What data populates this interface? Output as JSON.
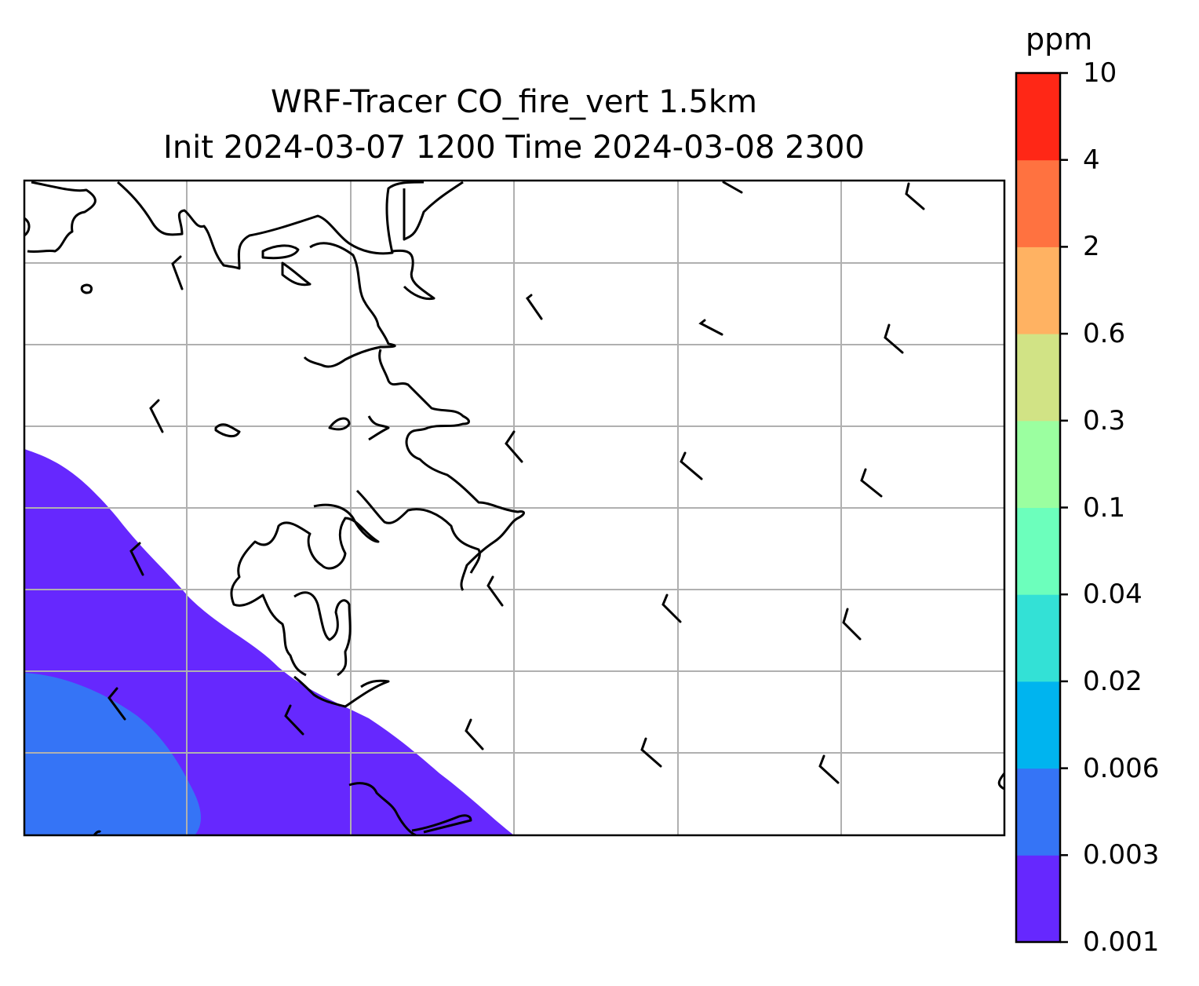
{
  "title": {
    "line1": "WRF-Tracer CO_fire_vert 1.5km",
    "line2": "Init 2024-03-07 1200 Time 2024-03-08 2300"
  },
  "colorbar": {
    "unit": "ppm",
    "levels": [
      "0.001",
      "0.003",
      "0.006",
      "0.02",
      "0.04",
      "0.1",
      "0.3",
      "0.6",
      "2",
      "4",
      "10"
    ],
    "colors": [
      "#6628fe",
      "#3574f6",
      "#00b4ef",
      "#33e1d6",
      "#6cffbc",
      "#9bffa0",
      "#d1e385",
      "#ffb262",
      "#ff7240",
      "#ff2716"
    ]
  },
  "map": {
    "gridlines": true,
    "coastline_color": "#000000",
    "gridline_color": "#b0b0b0"
  }
}
